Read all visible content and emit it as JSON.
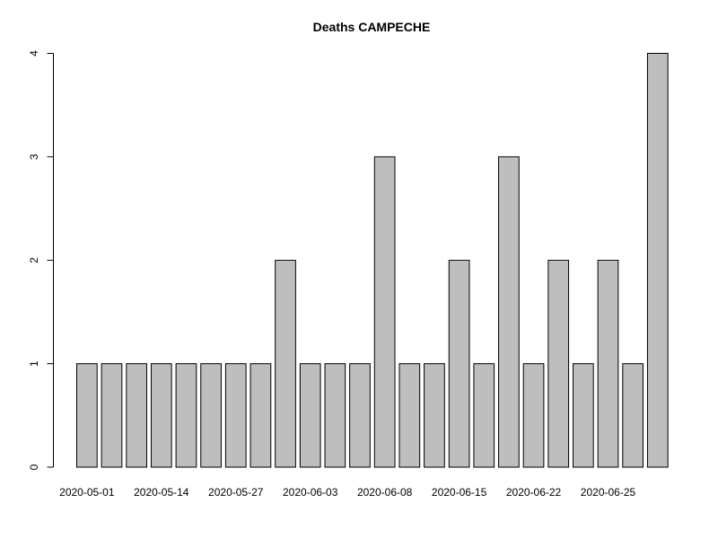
{
  "chart_data": {
    "type": "bar",
    "title": "Deaths CAMPECHE",
    "xlabel": "",
    "ylabel": "",
    "ylim": [
      0,
      4
    ],
    "y_ticks": [
      0,
      1,
      2,
      3,
      4
    ],
    "values": [
      1,
      1,
      1,
      1,
      1,
      1,
      1,
      1,
      2,
      1,
      1,
      1,
      3,
      1,
      1,
      2,
      1,
      3,
      1,
      2,
      1,
      2,
      1,
      4
    ],
    "x_tick_labels": [
      "2020-05-01",
      "2020-05-14",
      "2020-05-27",
      "2020-06-03",
      "2020-06-08",
      "2020-06-15",
      "2020-06-22",
      "2020-06-25"
    ],
    "grid": false,
    "legend": "none",
    "bar_color": "#bebebe",
    "bar_border_color": "#000000"
  }
}
